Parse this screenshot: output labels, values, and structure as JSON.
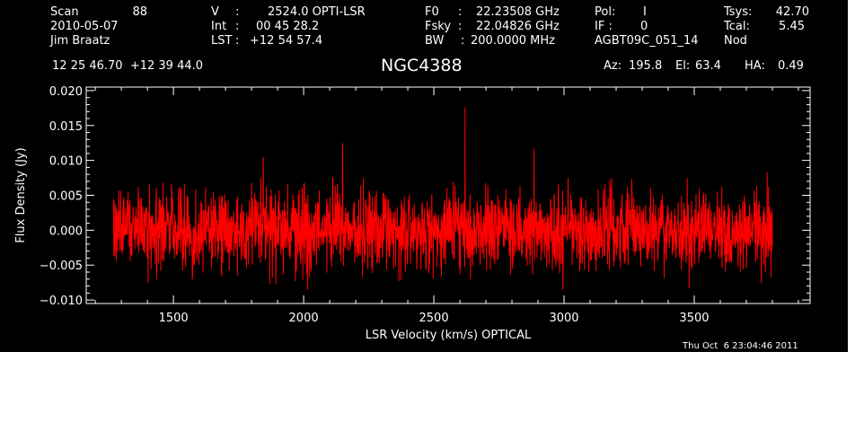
{
  "header": {
    "scan_label": "Scan",
    "scan_value": "88",
    "date": "2010-05-07",
    "observer": "Jim Braatz",
    "v_label": "V",
    "v_value": "2524.0 OPTI-LSR",
    "int_label": "Int",
    "int_value": "00 45 28.2",
    "lst_label": "LST",
    "lst_value": "+12 54 57.4",
    "f0_label": "F0",
    "f0_value": "22.23508 GHz",
    "fsky_label": "Fsky",
    "fsky_value": "22.04826 GHz",
    "bw_label": "BW",
    "bw_value": "200.0000 MHz",
    "pol_label": "Pol:",
    "pol_value": "I",
    "if_label": "IF :",
    "if_value": "0",
    "project": "AGBT09C_051_14",
    "tsys_label": "Tsys:",
    "tsys_value": "42.70",
    "tcal_label": "Tcal:",
    "tcal_value": "5.45",
    "mode": "Nod",
    "coords": "12 25 46.70  +12 39 44.0",
    "object": "NGC4388",
    "az_label": "Az:",
    "az_value": "195.8",
    "el_label": "El:",
    "el_value": "63.4",
    "ha_label": "HA:",
    "ha_value": "0.49"
  },
  "timestamp": "Thu Oct  6 23:04:46 2011",
  "colors": {
    "background": "#000000",
    "foreground": "#ffffff",
    "series": "#ff0000"
  },
  "chart_data": {
    "type": "line",
    "xlabel": "LSR Velocity (km/s) OPTICAL",
    "ylabel": "Flux Density (Jy)",
    "xlim": [
      1165,
      3945
    ],
    "ylim": [
      -0.0105,
      0.0205
    ],
    "xticks": [
      1500,
      2000,
      2500,
      3000,
      3500
    ],
    "xtick_labels": [
      "1500",
      "2000",
      "2500",
      "3000",
      "3500"
    ],
    "yticks": [
      -0.01,
      -0.005,
      0.0,
      0.005,
      0.01,
      0.015,
      0.02
    ],
    "ytick_labels": [
      "−0.010",
      "−0.005",
      "0.000",
      "0.005",
      "0.010",
      "0.015",
      "0.020"
    ],
    "grid": false,
    "series": [
      {
        "x_start": 1270,
        "x_end": 3800,
        "noise_level": 0.0028,
        "peaks": [
          {
            "x": 1845,
            "y": 0.0105
          },
          {
            "x": 2150,
            "y": 0.0125
          },
          {
            "x": 2620,
            "y": 0.0176
          },
          {
            "x": 2885,
            "y": 0.0117
          },
          {
            "x": 3780,
            "y": 0.0083
          }
        ]
      }
    ]
  }
}
